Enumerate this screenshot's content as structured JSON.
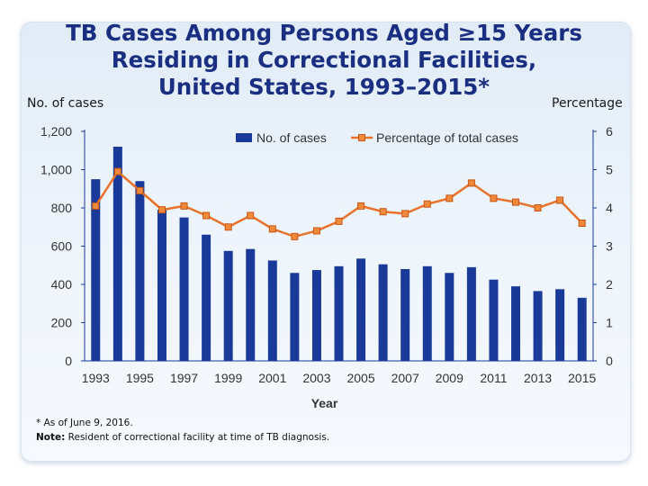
{
  "title_lines": [
    "TB Cases Among Persons Aged ≥15 Years",
    "Residing in Correctional Facilities,",
    "United States, 1993–2015*"
  ],
  "left_axis_title": "No. of cases",
  "right_axis_title": "Percentage",
  "footnote": "* As of June 9, 2016.",
  "note_label": "Note:",
  "note_text": " Resident of correctional facility at time of TB diagnosis.",
  "colors": {
    "bar": "#1a3a9a",
    "line": "#e8722a",
    "marker_fill": "#f08a3a",
    "marker_stroke": "#c85514",
    "axis_text": "#333333",
    "axis_line": "#1a3a9a"
  },
  "chart_data": {
    "type": "bar",
    "title": "TB Cases Among Persons Aged ≥15 Years Residing in Correctional Facilities, United States, 1993–2015*",
    "xlabel": "Year",
    "ylabel": "No. of cases",
    "y2label": "Percentage",
    "ylim": [
      0,
      1200
    ],
    "y2lim": [
      0,
      6
    ],
    "yticks": [
      "0",
      "200",
      "400",
      "600",
      "800",
      "1,000",
      "1,200"
    ],
    "y2ticks": [
      "0",
      "1",
      "2",
      "3",
      "4",
      "5",
      "6"
    ],
    "categories": [
      "1993",
      "1994",
      "1995",
      "1996",
      "1997",
      "1998",
      "1999",
      "2000",
      "2001",
      "2002",
      "2003",
      "2004",
      "2005",
      "2006",
      "2007",
      "2008",
      "2009",
      "2010",
      "2011",
      "2012",
      "2013",
      "2014",
      "2015"
    ],
    "xtick_labels": [
      "1993",
      "1995",
      "1997",
      "1999",
      "2001",
      "2003",
      "2005",
      "2007",
      "2009",
      "2011",
      "2013",
      "2015"
    ],
    "legend": [
      "No. of cases",
      "Percentage of total cases"
    ],
    "legend_position": "top",
    "series": [
      {
        "name": "No. of cases",
        "type": "bar",
        "axis": "left",
        "values": [
          950,
          1120,
          940,
          790,
          750,
          660,
          575,
          585,
          525,
          460,
          475,
          495,
          535,
          505,
          480,
          495,
          460,
          490,
          425,
          390,
          365,
          375,
          330
        ]
      },
      {
        "name": "Percentage of total cases",
        "type": "line",
        "axis": "right",
        "values": [
          4.05,
          4.95,
          4.45,
          3.95,
          4.05,
          3.8,
          3.5,
          3.8,
          3.45,
          3.25,
          3.4,
          3.65,
          4.05,
          3.9,
          3.85,
          4.1,
          4.25,
          4.65,
          4.25,
          4.15,
          4.0,
          4.2,
          3.6
        ]
      }
    ]
  }
}
